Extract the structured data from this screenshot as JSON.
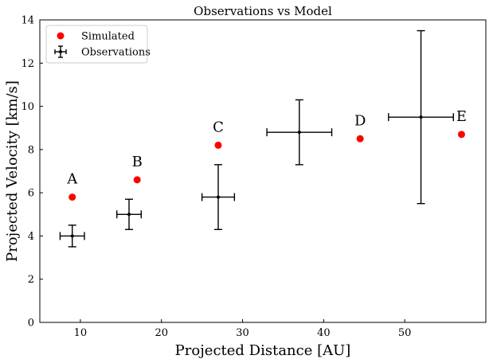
{
  "chart_data": {
    "type": "scatter",
    "title": "Observations vs Model",
    "xlabel": "Projected Distance [AU]",
    "ylabel": "Projected Velocity [km/s]",
    "xlim": [
      5,
      60
    ],
    "ylim": [
      0,
      14
    ],
    "x_ticks": [
      10,
      20,
      30,
      40,
      50
    ],
    "y_ticks": [
      0,
      2,
      4,
      6,
      8,
      10,
      12,
      14
    ],
    "grid": false,
    "legend_position": "upper-left",
    "legend": [
      {
        "label": "Simulated",
        "marker": "filled-circle",
        "color": "#ff0000"
      },
      {
        "label": "Observations",
        "marker": "errorbar",
        "color": "#000000"
      }
    ],
    "series": [
      {
        "name": "Simulated",
        "color": "#ff0000",
        "points": [
          {
            "x": 9,
            "y": 5.8,
            "label": "A"
          },
          {
            "x": 17,
            "y": 6.6,
            "label": "B"
          },
          {
            "x": 27,
            "y": 8.2,
            "label": "C"
          },
          {
            "x": 44.5,
            "y": 8.5,
            "label": "D"
          },
          {
            "x": 57,
            "y": 8.7,
            "label": "E"
          }
        ]
      },
      {
        "name": "Observations",
        "color": "#000000",
        "points": [
          {
            "x": 9,
            "y": 4.0,
            "xerr": 1.5,
            "yerr": 0.5
          },
          {
            "x": 16,
            "y": 5.0,
            "xerr": 1.5,
            "yerr": 0.7
          },
          {
            "x": 27,
            "y": 5.8,
            "xerr": 2.0,
            "yerr": 1.5
          },
          {
            "x": 37,
            "y": 8.8,
            "xerr": 4.0,
            "yerr": 1.5
          },
          {
            "x": 52,
            "y": 9.5,
            "xerr": 4.0,
            "yerr": 4.0
          }
        ]
      }
    ]
  }
}
